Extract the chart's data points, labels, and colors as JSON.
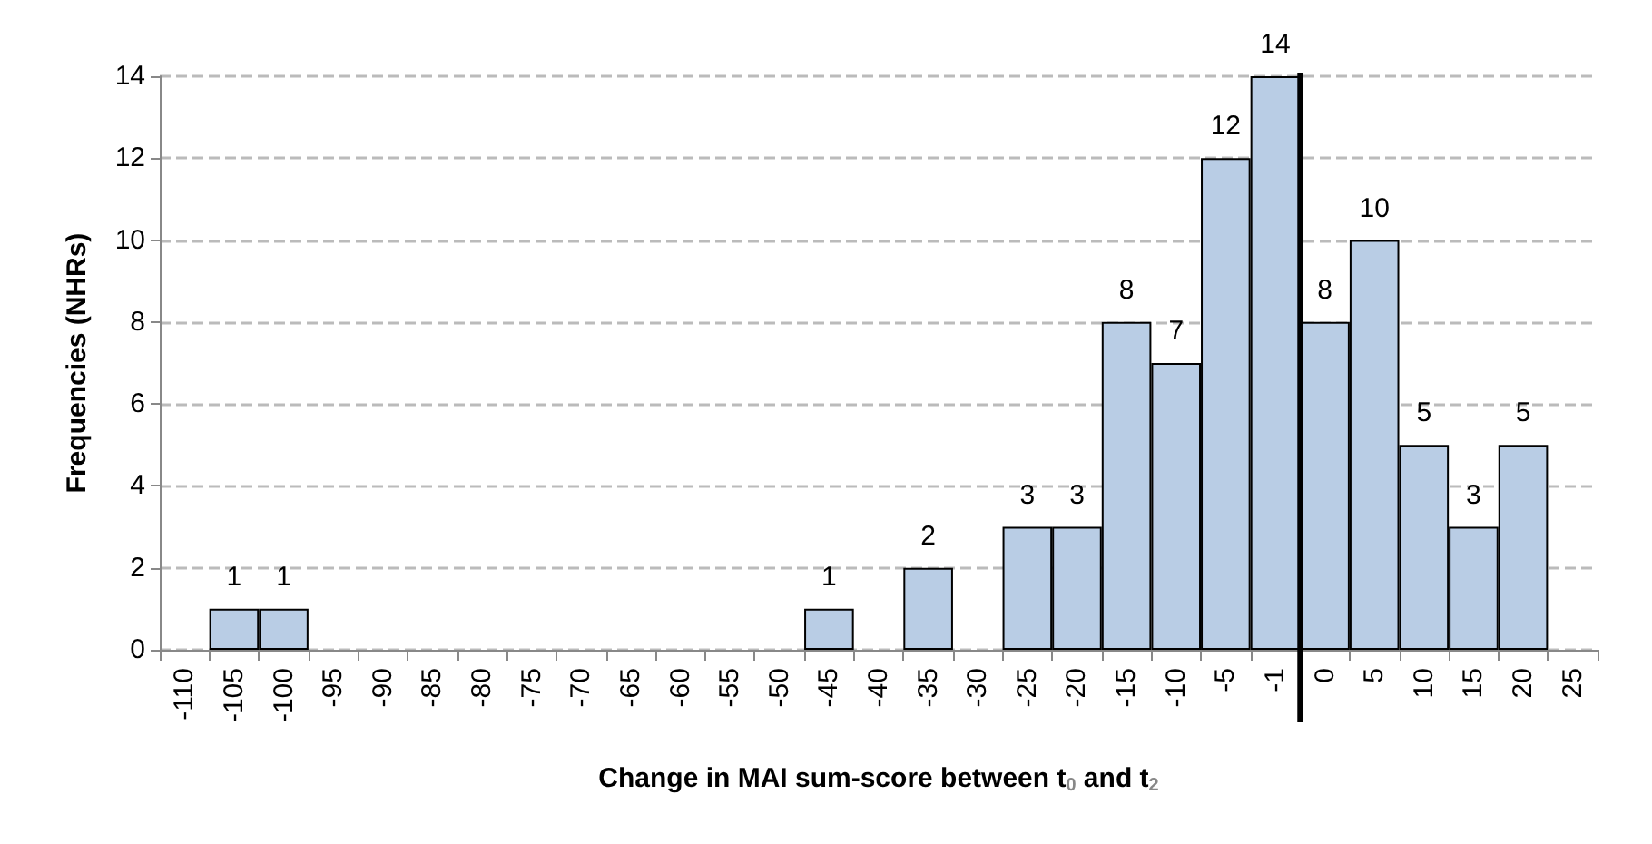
{
  "chart_data": {
    "type": "bar",
    "xlabel": "Change in MAI sum-score between t$_{0}$ and t$_{2}$",
    "ylabel": "Frequencies (NHRs)",
    "categories": [
      "-110",
      "-105",
      "-100",
      "-95",
      "-90",
      "-85",
      "-80",
      "-75",
      "-70",
      "-65",
      "-60",
      "-55",
      "-50",
      "-45",
      "-40",
      "-35",
      "-30",
      "-25",
      "-20",
      "-15",
      "-10",
      "-5",
      "-1",
      "0",
      "5",
      "10",
      "15",
      "20",
      "25"
    ],
    "values": [
      0,
      1,
      1,
      0,
      0,
      0,
      0,
      0,
      0,
      0,
      0,
      0,
      0,
      1,
      0,
      2,
      0,
      3,
      3,
      8,
      7,
      12,
      14,
      8,
      10,
      5,
      3,
      5,
      0
    ],
    "value_labels": [
      null,
      "1",
      "1",
      null,
      null,
      null,
      null,
      null,
      null,
      null,
      null,
      null,
      null,
      "1",
      null,
      "2",
      null,
      "3",
      "3",
      "8",
      "7",
      "12",
      "14",
      "8",
      "10",
      "5",
      "3",
      "5",
      null
    ],
    "color": "#b9cde5",
    "ylim": [
      0,
      14
    ],
    "yticks": [
      0,
      2,
      4,
      6,
      8,
      10,
      12,
      14
    ],
    "grid": "y",
    "ref_lines": [
      {
        "axis": "x",
        "value": "0",
        "color": "#000000"
      }
    ]
  }
}
